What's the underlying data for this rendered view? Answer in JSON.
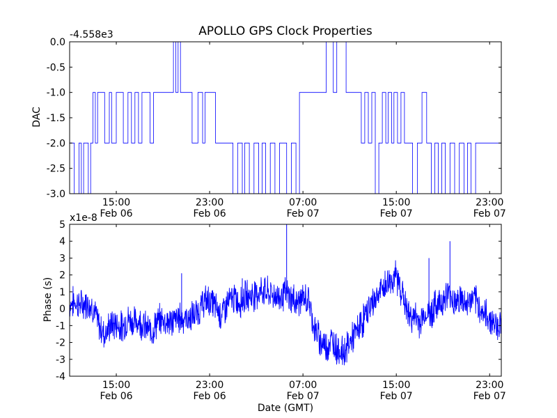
{
  "figure": {
    "title": "APOLLO GPS Clock Properties"
  },
  "chart_data": [
    {
      "type": "line",
      "ylabel": "DAC",
      "xlabel": "",
      "offset_label": "-4.558e3",
      "xlim_hours": [
        11.0,
        48.0
      ],
      "ylim": [
        -3.0,
        0.0
      ],
      "yticks": [
        0.0,
        -0.5,
        -1.0,
        -1.5,
        -2.0,
        -2.5,
        -3.0
      ],
      "ytick_labels": [
        "0.0",
        "-0.5",
        "-1.0",
        "-1.5",
        "-2.0",
        "-2.5",
        "-3.0"
      ],
      "xticks_hours": [
        15,
        23,
        31,
        39,
        47
      ],
      "xtick_time_labels": [
        "15:00",
        "23:00",
        "07:00",
        "15:00",
        "23:00"
      ],
      "xtick_date_labels": [
        "Feb 06",
        "Feb 06",
        "Feb 07",
        "Feb 07",
        "Feb 07"
      ],
      "color": "#0000ff",
      "x": [
        11.0,
        11.2,
        11.4,
        11.8,
        12.0,
        12.2,
        12.6,
        12.8,
        13.0,
        13.2,
        13.4,
        13.6,
        14.0,
        14.4,
        14.6,
        15.0,
        15.3,
        15.6,
        16.0,
        16.3,
        16.6,
        16.9,
        17.2,
        17.6,
        17.9,
        18.2,
        18.6,
        19.0,
        19.6,
        19.9,
        20.1,
        20.3,
        20.5,
        20.7,
        21.0,
        21.5,
        22.0,
        22.2,
        22.4,
        22.6,
        23.0,
        23.5,
        24.0,
        24.3,
        24.7,
        25.0,
        25.4,
        25.8,
        26.0,
        26.4,
        26.8,
        27.2,
        27.5,
        27.8,
        28.2,
        28.6,
        29.0,
        29.3,
        29.6,
        30.0,
        30.4,
        30.7,
        31.0,
        31.5,
        32.0,
        32.4,
        32.8,
        33.0,
        33.3,
        33.6,
        33.9,
        34.1,
        34.3,
        34.5,
        34.7,
        35.0,
        35.5,
        36.0,
        36.3,
        36.6,
        36.9,
        37.2,
        37.5,
        37.8,
        38.1,
        38.3,
        38.6,
        38.8,
        39.1,
        39.4,
        39.7,
        40.0,
        40.4,
        40.8,
        41.2,
        41.6,
        42.0,
        42.3,
        42.6,
        42.9,
        43.2,
        43.6,
        44.0,
        44.4,
        44.8,
        45.1,
        45.4,
        45.8,
        46.2,
        46.6,
        47.0,
        47.4,
        47.7,
        48.0
      ],
      "y": [
        -2.0,
        -2.0,
        -3.0,
        -2.0,
        -3.0,
        -2.0,
        -3.0,
        -2.0,
        -1.0,
        -2.0,
        -1.0,
        -1.0,
        -2.0,
        -1.0,
        -2.0,
        -1.0,
        -1.0,
        -2.0,
        -1.0,
        -2.0,
        -1.0,
        -2.0,
        -1.0,
        -1.0,
        -2.0,
        -1.0,
        -1.0,
        -1.0,
        -1.0,
        0.0,
        -1.0,
        0.0,
        -1.0,
        -1.0,
        -1.0,
        -2.0,
        -1.0,
        -1.0,
        -2.0,
        -1.0,
        -1.0,
        -2.0,
        -2.0,
        -2.0,
        -2.0,
        -3.0,
        -2.0,
        -3.0,
        -2.0,
        -3.0,
        -2.0,
        -3.0,
        -2.0,
        -3.0,
        -2.0,
        -3.0,
        -2.0,
        -2.0,
        -3.0,
        -2.0,
        -3.0,
        -1.0,
        -1.0,
        -1.0,
        -1.0,
        -1.0,
        -1.0,
        0.0,
        0.0,
        -1.0,
        0.0,
        0.0,
        0.0,
        0.0,
        -1.0,
        -1.0,
        -1.0,
        -2.0,
        -1.0,
        -2.0,
        -1.0,
        -3.0,
        -2.0,
        -1.0,
        -2.0,
        -1.0,
        -2.0,
        -1.0,
        -2.0,
        -1.0,
        -2.0,
        -2.0,
        -3.0,
        -2.0,
        -1.0,
        -2.0,
        -3.0,
        -2.0,
        -3.0,
        -2.0,
        -3.0,
        -2.0,
        -3.0,
        -2.0,
        -3.0,
        -2.0,
        -3.0,
        -2.0,
        -2.0,
        -2.0,
        -2.0,
        -2.0,
        -2.0,
        -1.0
      ]
    },
    {
      "type": "line",
      "ylabel": "Phase (s)",
      "xlabel": "Date (GMT)",
      "offset_label": "x1e-8",
      "xlim_hours": [
        11.0,
        48.0
      ],
      "ylim": [
        -4,
        5
      ],
      "yticks": [
        5,
        4,
        3,
        2,
        1,
        0,
        -1,
        -2,
        -3,
        -4
      ],
      "ytick_labels": [
        "5",
        "4",
        "3",
        "2",
        "1",
        "0",
        "-1",
        "-2",
        "-3",
        "-4"
      ],
      "xticks_hours": [
        15,
        23,
        31,
        39,
        47
      ],
      "xtick_time_labels": [
        "15:00",
        "23:00",
        "07:00",
        "15:00",
        "23:00"
      ],
      "xtick_date_labels": [
        "Feb 06",
        "Feb 06",
        "Feb 07",
        "Feb 07",
        "Feb 07"
      ],
      "color": "#0000ff",
      "x": [
        11.0,
        11.5,
        12.0,
        12.5,
        13.0,
        13.5,
        14.0,
        14.5,
        15.0,
        15.5,
        16.0,
        16.5,
        17.0,
        17.5,
        18.0,
        18.5,
        19.0,
        19.5,
        20.0,
        20.5,
        21.0,
        21.5,
        22.0,
        22.5,
        23.0,
        23.5,
        24.0,
        24.5,
        25.0,
        25.5,
        26.0,
        26.5,
        27.0,
        27.5,
        28.0,
        28.5,
        29.0,
        29.5,
        30.0,
        30.5,
        31.0,
        31.5,
        32.0,
        32.5,
        33.0,
        33.5,
        34.0,
        34.5,
        35.0,
        35.5,
        36.0,
        36.5,
        37.0,
        37.5,
        38.0,
        38.5,
        39.0,
        39.5,
        40.0,
        40.5,
        41.0,
        41.5,
        42.0,
        42.5,
        43.0,
        43.5,
        44.0,
        44.5,
        45.0,
        45.5,
        46.0,
        46.5,
        47.0,
        47.5,
        48.0
      ],
      "y": [
        0.3,
        0.4,
        0.2,
        0.4,
        0.1,
        -1.0,
        -1.5,
        -1.0,
        -0.9,
        -1.1,
        -0.6,
        -0.8,
        -0.7,
        -1.1,
        -1.4,
        -0.8,
        -0.6,
        -0.8,
        -0.7,
        -0.5,
        -0.6,
        -0.5,
        -0.2,
        0.4,
        0.5,
        0.1,
        -0.4,
        0.3,
        0.6,
        0.4,
        0.7,
        0.8,
        0.9,
        1.1,
        0.9,
        0.8,
        0.7,
        0.9,
        0.6,
        0.4,
        0.6,
        0.5,
        -1.2,
        -1.9,
        -2.2,
        -1.9,
        -2.4,
        -2.6,
        -2.0,
        -1.5,
        -0.9,
        -0.2,
        0.4,
        0.9,
        1.3,
        1.7,
        1.9,
        1.0,
        -0.4,
        -0.5,
        -0.8,
        -0.3,
        -0.2,
        0.3,
        0.5,
        0.9,
        0.4,
        0.6,
        0.2,
        0.6,
        0.2,
        -0.3,
        -0.6,
        -0.9,
        -1.0
      ],
      "spikes": [
        {
          "x": 20.6,
          "y": 2.1
        },
        {
          "x": 25.8,
          "y": 1.8
        },
        {
          "x": 29.6,
          "y": 5.0
        },
        {
          "x": 41.8,
          "y": 3.0
        },
        {
          "x": 43.6,
          "y": 4.0
        }
      ]
    }
  ]
}
